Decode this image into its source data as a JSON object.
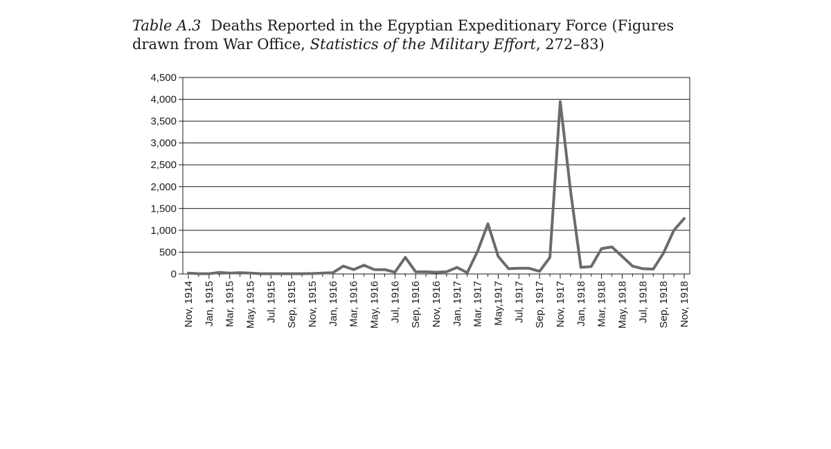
{
  "caption": {
    "number": "Table A.3",
    "text_before": "Deaths Reported in the Egyptian Expeditionary Force (Figures drawn from War Office,",
    "source_italic": "Statistics of the Military Effort",
    "text_after": ", 272–83)"
  },
  "chart_data": {
    "type": "line",
    "title": "",
    "xlabel": "",
    "ylabel": "",
    "ylim": [
      0,
      4500
    ],
    "yticks": [
      0,
      500,
      1000,
      1500,
      2000,
      2500,
      3000,
      3500,
      4000,
      4500
    ],
    "ytick_labels": [
      "0",
      "500",
      "1,000",
      "1,500",
      "2,000",
      "2,500",
      "3,000",
      "3,500",
      "4,000",
      "4,500"
    ],
    "grid": "horizontal",
    "line_color": "#6b6b6b",
    "categories": [
      "Nov, 1914",
      "Dec, 1914",
      "Jan, 1915",
      "Feb, 1915",
      "Mar, 1915",
      "Apr, 1915",
      "May, 1915",
      "Jun, 1915",
      "Jul, 1915",
      "Aug, 1915",
      "Sep, 1915",
      "Oct, 1915",
      "Nov, 1915",
      "Dec, 1915",
      "Jan, 1916",
      "Feb, 1916",
      "Mar, 1916",
      "Apr, 1916",
      "May, 1916",
      "Jun, 1916",
      "Jul, 1916",
      "Aug, 1916",
      "Sep, 1916",
      "Oct, 1916",
      "Nov, 1916",
      "Dec, 1916",
      "Jan, 1917",
      "Feb, 1917",
      "Mar, 1917",
      "Apr, 1917",
      "May,1917",
      "Jun, 1917",
      "Jul, 1917",
      "Aug, 1917",
      "Sep, 1917",
      "Oct, 1917",
      "Nov, 1917",
      "Dec, 1917",
      "Jan, 1918",
      "Feb, 1918",
      "Mar, 1918",
      "Apr, 1918",
      "May, 1918",
      "Jun, 1918",
      "Jul, 1918",
      "Aug, 1918",
      "Sep, 1918",
      "Oct, 1918",
      "Nov, 1918"
    ],
    "tick_labels_shown": [
      "Nov, 1914",
      "Jan, 1915",
      "Mar, 1915",
      "May, 1915",
      "Jul, 1915",
      "Sep, 1915",
      "Nov, 1915",
      "Jan, 1916",
      "Mar, 1916",
      "May, 1916",
      "Jul, 1916",
      "Sep, 1916",
      "Nov, 1916",
      "Jan, 1917",
      "Mar, 1917",
      "May,1917",
      "Jul, 1917",
      "Sep, 1917",
      "Nov, 1917",
      "Jan, 1918",
      "Mar, 1918",
      "May, 1918",
      "Jul, 1918",
      "Sep, 1918",
      "Nov, 1918"
    ],
    "values": [
      20,
      5,
      5,
      35,
      20,
      30,
      20,
      5,
      5,
      5,
      5,
      5,
      10,
      20,
      30,
      180,
      100,
      200,
      100,
      100,
      40,
      380,
      50,
      50,
      40,
      50,
      150,
      30,
      520,
      1150,
      400,
      120,
      130,
      130,
      60,
      380,
      3950,
      1900,
      150,
      170,
      580,
      620,
      400,
      180,
      120,
      110,
      480,
      1000,
      1270
    ]
  }
}
